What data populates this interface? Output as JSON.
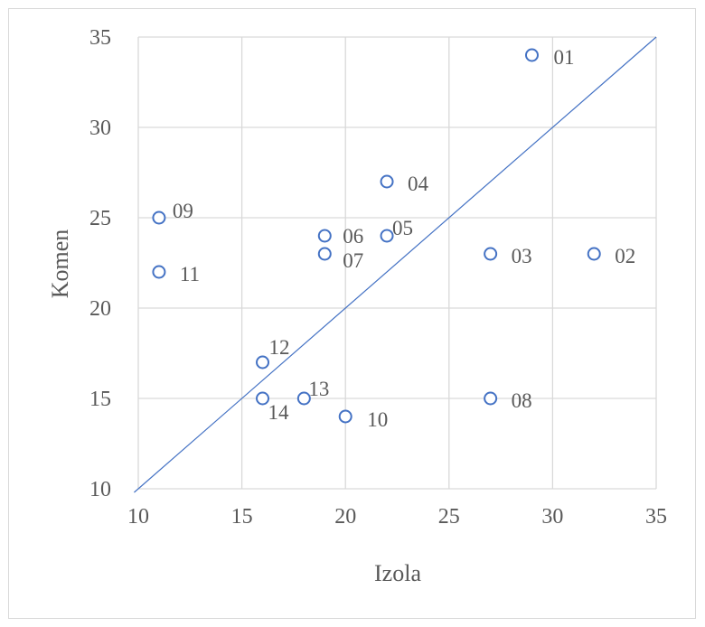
{
  "chart_data": {
    "type": "scatter",
    "title": "",
    "xlabel": "Izola",
    "ylabel": "Komen",
    "xlim": [
      10,
      35
    ],
    "ylim": [
      10,
      35
    ],
    "x_ticks": [
      "10",
      "15",
      "20",
      "25",
      "30",
      "35"
    ],
    "y_ticks": [
      "10",
      "15",
      "20",
      "25",
      "30",
      "35"
    ],
    "grid": true,
    "legend": "none",
    "reference_line": {
      "from": [
        10,
        10
      ],
      "to": [
        35,
        35
      ]
    },
    "marker_color": "#4472c4",
    "line_color": "#4472c4",
    "points": [
      {
        "label": "01",
        "x": 29,
        "y": 34
      },
      {
        "label": "02",
        "x": 32,
        "y": 23
      },
      {
        "label": "03",
        "x": 27,
        "y": 23
      },
      {
        "label": "04",
        "x": 22,
        "y": 27
      },
      {
        "label": "05",
        "x": 22,
        "y": 24
      },
      {
        "label": "06",
        "x": 19,
        "y": 24
      },
      {
        "label": "07",
        "x": 19,
        "y": 23
      },
      {
        "label": "08",
        "x": 27,
        "y": 15
      },
      {
        "label": "09",
        "x": 11,
        "y": 25
      },
      {
        "label": "10",
        "x": 20,
        "y": 14
      },
      {
        "label": "11",
        "x": 11,
        "y": 22
      },
      {
        "label": "12",
        "x": 16,
        "y": 17
      },
      {
        "label": "13",
        "x": 18,
        "y": 15
      },
      {
        "label": "14",
        "x": 16,
        "y": 15
      }
    ]
  }
}
